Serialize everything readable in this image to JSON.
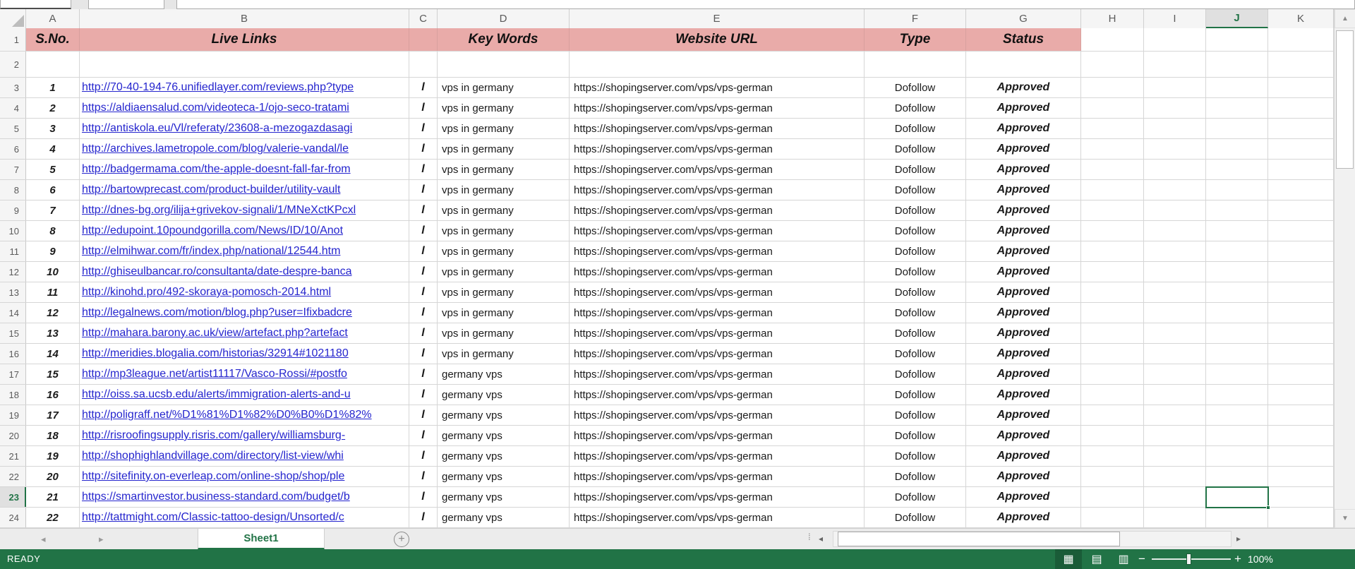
{
  "columns": [
    "A",
    "B",
    "C",
    "D",
    "E",
    "F",
    "G",
    "H",
    "I",
    "J",
    "K"
  ],
  "rows_visible": [
    "1",
    "2",
    "3",
    "4",
    "5",
    "6",
    "7",
    "8",
    "9",
    "10",
    "11",
    "12",
    "13",
    "14",
    "15",
    "16",
    "17",
    "18",
    "19",
    "20",
    "21",
    "22",
    "23",
    "24"
  ],
  "selected": {
    "column": "J",
    "row": "23"
  },
  "table": {
    "headers": {
      "A": "S.No.",
      "B": "Live Links",
      "C": "",
      "D": "Key Words",
      "E": "Website URL",
      "F": "Type",
      "G": "Status"
    },
    "records": [
      {
        "sno": "1",
        "live_link": "http://70-40-194-76.unifiedlayer.com/reviews.php?type",
        "sep": "l",
        "keyword": "vps in germany",
        "website_url": "https://shopingserver.com/vps/vps-german",
        "type": "Dofollow",
        "status": "Approved"
      },
      {
        "sno": "2",
        "live_link": "https://aldiaensalud.com/videoteca-1/ojo-seco-tratami",
        "sep": "l",
        "keyword": "vps in germany",
        "website_url": "https://shopingserver.com/vps/vps-german",
        "type": "Dofollow",
        "status": "Approved"
      },
      {
        "sno": "3",
        "live_link": "http://antiskola.eu/Vl/referaty/23608-a-mezogazdasagi",
        "sep": "l",
        "keyword": "vps in germany",
        "website_url": "https://shopingserver.com/vps/vps-german",
        "type": "Dofollow",
        "status": "Approved"
      },
      {
        "sno": "4",
        "live_link": "http://archives.lametropole.com/blog/valerie-vandal/le",
        "sep": "l",
        "keyword": "vps in germany",
        "website_url": "https://shopingserver.com/vps/vps-german",
        "type": "Dofollow",
        "status": "Approved"
      },
      {
        "sno": "5",
        "live_link": "http://badgermama.com/the-apple-doesnt-fall-far-from",
        "sep": "l",
        "keyword": "vps in germany",
        "website_url": "https://shopingserver.com/vps/vps-german",
        "type": "Dofollow",
        "status": "Approved"
      },
      {
        "sno": "6",
        "live_link": "http://bartowprecast.com/product-builder/utility-vault",
        "sep": "l",
        "keyword": "vps in germany",
        "website_url": "https://shopingserver.com/vps/vps-german",
        "type": "Dofollow",
        "status": "Approved"
      },
      {
        "sno": "7",
        "live_link": "http://dnes-bg.org/ilija+grivekov-signali/1/MNeXctKPcxl",
        "sep": "l",
        "keyword": "vps in germany",
        "website_url": "https://shopingserver.com/vps/vps-german",
        "type": "Dofollow",
        "status": "Approved"
      },
      {
        "sno": "8",
        "live_link": "http://edupoint.10poundgorilla.com/News/ID/10/Anot",
        "sep": "l",
        "keyword": "vps in germany",
        "website_url": "https://shopingserver.com/vps/vps-german",
        "type": "Dofollow",
        "status": "Approved"
      },
      {
        "sno": "9",
        "live_link": "http://elmihwar.com/fr/index.php/national/12544.htm",
        "sep": "l",
        "keyword": "vps in germany",
        "website_url": "https://shopingserver.com/vps/vps-german",
        "type": "Dofollow",
        "status": "Approved"
      },
      {
        "sno": "10",
        "live_link": "http://ghiseulbancar.ro/consultanta/date-despre-banca",
        "sep": "l",
        "keyword": "vps in germany",
        "website_url": "https://shopingserver.com/vps/vps-german",
        "type": "Dofollow",
        "status": "Approved"
      },
      {
        "sno": "11",
        "live_link": "http://kinohd.pro/492-skoraya-pomosch-2014.html",
        "sep": "l",
        "keyword": "vps in germany",
        "website_url": "https://shopingserver.com/vps/vps-german",
        "type": "Dofollow",
        "status": "Approved"
      },
      {
        "sno": "12",
        "live_link": "http://legalnews.com/motion/blog.php?user=Ifixbadcre",
        "sep": "l",
        "keyword": "vps in germany",
        "website_url": "https://shopingserver.com/vps/vps-german",
        "type": "Dofollow",
        "status": "Approved"
      },
      {
        "sno": "13",
        "live_link": "http://mahara.barony.ac.uk/view/artefact.php?artefact",
        "sep": "l",
        "keyword": "vps in germany",
        "website_url": "https://shopingserver.com/vps/vps-german",
        "type": "Dofollow",
        "status": "Approved"
      },
      {
        "sno": "14",
        "live_link": "http://meridies.blogalia.com/historias/32914#1021180",
        "sep": "l",
        "keyword": "vps in germany",
        "website_url": "https://shopingserver.com/vps/vps-german",
        "type": "Dofollow",
        "status": "Approved"
      },
      {
        "sno": "15",
        "live_link": "http://mp3league.net/artist11117/Vasco-Rossi/#postfo",
        "sep": "l",
        "keyword": "germany vps",
        "website_url": "https://shopingserver.com/vps/vps-german",
        "type": "Dofollow",
        "status": "Approved"
      },
      {
        "sno": "16",
        "live_link": "http://oiss.sa.ucsb.edu/alerts/immigration-alerts-and-u",
        "sep": "l",
        "keyword": "germany vps",
        "website_url": "https://shopingserver.com/vps/vps-german",
        "type": "Dofollow",
        "status": "Approved"
      },
      {
        "sno": "17",
        "live_link": "http://poligraff.net/%D1%81%D1%82%D0%B0%D1%82%",
        "sep": "l",
        "keyword": "germany vps",
        "website_url": "https://shopingserver.com/vps/vps-german",
        "type": "Dofollow",
        "status": "Approved"
      },
      {
        "sno": "18",
        "live_link": "http://risroofingsupply.risris.com/gallery/williamsburg-",
        "sep": "l",
        "keyword": "germany vps",
        "website_url": "https://shopingserver.com/vps/vps-german",
        "type": "Dofollow",
        "status": "Approved"
      },
      {
        "sno": "19",
        "live_link": "http://shophighlandvillage.com/directory/list-view/whi",
        "sep": "l",
        "keyword": "germany vps",
        "website_url": "https://shopingserver.com/vps/vps-german",
        "type": "Dofollow",
        "status": "Approved"
      },
      {
        "sno": "20",
        "live_link": "http://sitefinity.on-everleap.com/online-shop/shop/ple",
        "sep": "l",
        "keyword": "germany vps",
        "website_url": "https://shopingserver.com/vps/vps-german",
        "type": "Dofollow",
        "status": "Approved"
      },
      {
        "sno": "21",
        "live_link": "https://smartinvestor.business-standard.com/budget/b",
        "sep": "l",
        "keyword": "germany vps",
        "website_url": "https://shopingserver.com/vps/vps-german",
        "type": "Dofollow",
        "status": "Approved"
      },
      {
        "sno": "22",
        "live_link": "http://tattmight.com/Classic-tattoo-design/Unsorted/c",
        "sep": "l",
        "keyword": "germany vps",
        "website_url": "https://shopingserver.com/vps/vps-german",
        "type": "Dofollow",
        "status": "Approved"
      }
    ]
  },
  "tab_bar": {
    "sheet_tab": "Sheet1",
    "add_sheet": "+"
  },
  "status_bar": {
    "mode": "READY",
    "zoom": "100%"
  },
  "icons": {
    "sheet_nav_left": "◂",
    "sheet_nav_right": "▸",
    "tab_options": "⁞",
    "hscroll_left": "◂",
    "hscroll_right": "▸",
    "vscroll_up": "▲",
    "vscroll_down": "▼",
    "view_normal": "▦",
    "view_page_layout": "▤",
    "view_page_break": "▥",
    "zoom_out": "−",
    "zoom_in": "+"
  },
  "colors": {
    "header_fill": "#e9aba9",
    "excel_green": "#217346",
    "link_blue": "#2525ce"
  }
}
